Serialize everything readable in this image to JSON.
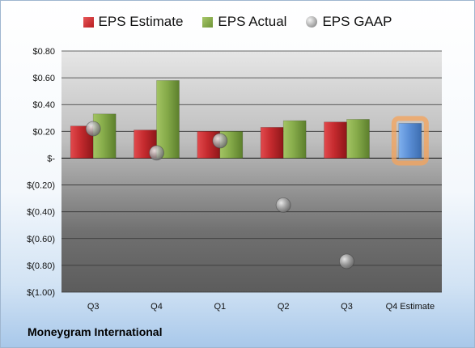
{
  "chart_data": {
    "type": "bar",
    "categories": [
      "Q3",
      "Q4",
      "Q1",
      "Q2",
      "Q3",
      "Q4 Estimate"
    ],
    "series": [
      {
        "name": "EPS Estimate",
        "values": [
          0.24,
          0.21,
          0.2,
          0.23,
          0.27,
          null
        ]
      },
      {
        "name": "EPS Actual",
        "values": [
          0.33,
          0.58,
          0.2,
          0.28,
          0.29,
          0.26
        ]
      },
      {
        "name": "EPS GAAP",
        "values": [
          0.22,
          0.04,
          0.13,
          -0.35,
          -0.77,
          null
        ]
      }
    ],
    "highlight_index": 5,
    "ylim": [
      -1.0,
      0.8
    ],
    "y_ticks": [
      {
        "value": 0.8,
        "label": "$0.80"
      },
      {
        "value": 0.6,
        "label": "$0.60"
      },
      {
        "value": 0.4,
        "label": "$0.40"
      },
      {
        "value": 0.2,
        "label": "$0.20"
      },
      {
        "value": 0.0,
        "label": "$-"
      },
      {
        "value": -0.2,
        "label": "$(0.20)"
      },
      {
        "value": -0.4,
        "label": "$(0.40)"
      },
      {
        "value": -0.6,
        "label": "$(0.60)"
      },
      {
        "value": -0.8,
        "label": "$(0.80)"
      },
      {
        "value": -1.0,
        "label": "$(1.00)"
      }
    ],
    "grid": true,
    "legend_position": "top",
    "colors": {
      "estimate": "#c0282c",
      "actual": "#7aa23f",
      "gaap": "#9a9a9a",
      "forecast": "#5b8fd6",
      "highlight": "#f5a35a"
    }
  },
  "legend": {
    "estimate": "EPS Estimate",
    "actual": "EPS Actual",
    "gaap": "EPS GAAP"
  },
  "company_name": "Moneygram International"
}
